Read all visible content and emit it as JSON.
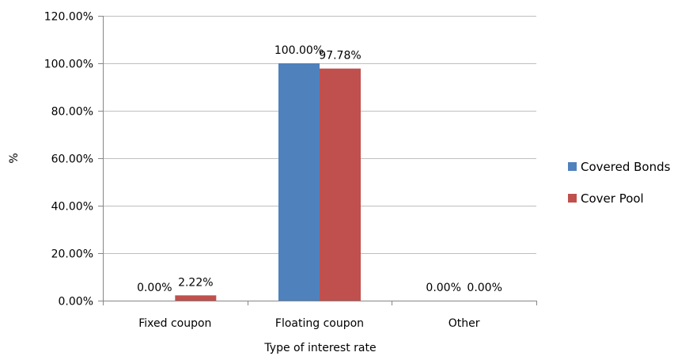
{
  "chart_data": {
    "type": "bar",
    "title": "",
    "xlabel": "Type of interest rate",
    "ylabel": "%",
    "categories": [
      "Fixed coupon",
      "Floating coupon",
      "Other"
    ],
    "series": [
      {
        "name": "Covered Bonds",
        "color": "#4F81BD",
        "values": [
          0.0,
          100.0,
          0.0
        ],
        "labels": [
          "0.00%",
          "100.00%",
          "0.00%"
        ]
      },
      {
        "name": "Cover Pool",
        "color": "#C0504D",
        "values": [
          2.22,
          97.78,
          0.0
        ],
        "labels": [
          "2.22%",
          "97.78%",
          "0.00%"
        ]
      }
    ],
    "ylim": [
      0,
      120
    ],
    "yticks": [
      0,
      20,
      40,
      60,
      80,
      100,
      120
    ],
    "ytick_labels": [
      "0.00%",
      "20.00%",
      "40.00%",
      "60.00%",
      "80.00%",
      "100.00%",
      "120.00%"
    ],
    "grid": true,
    "legend_position": "right"
  }
}
